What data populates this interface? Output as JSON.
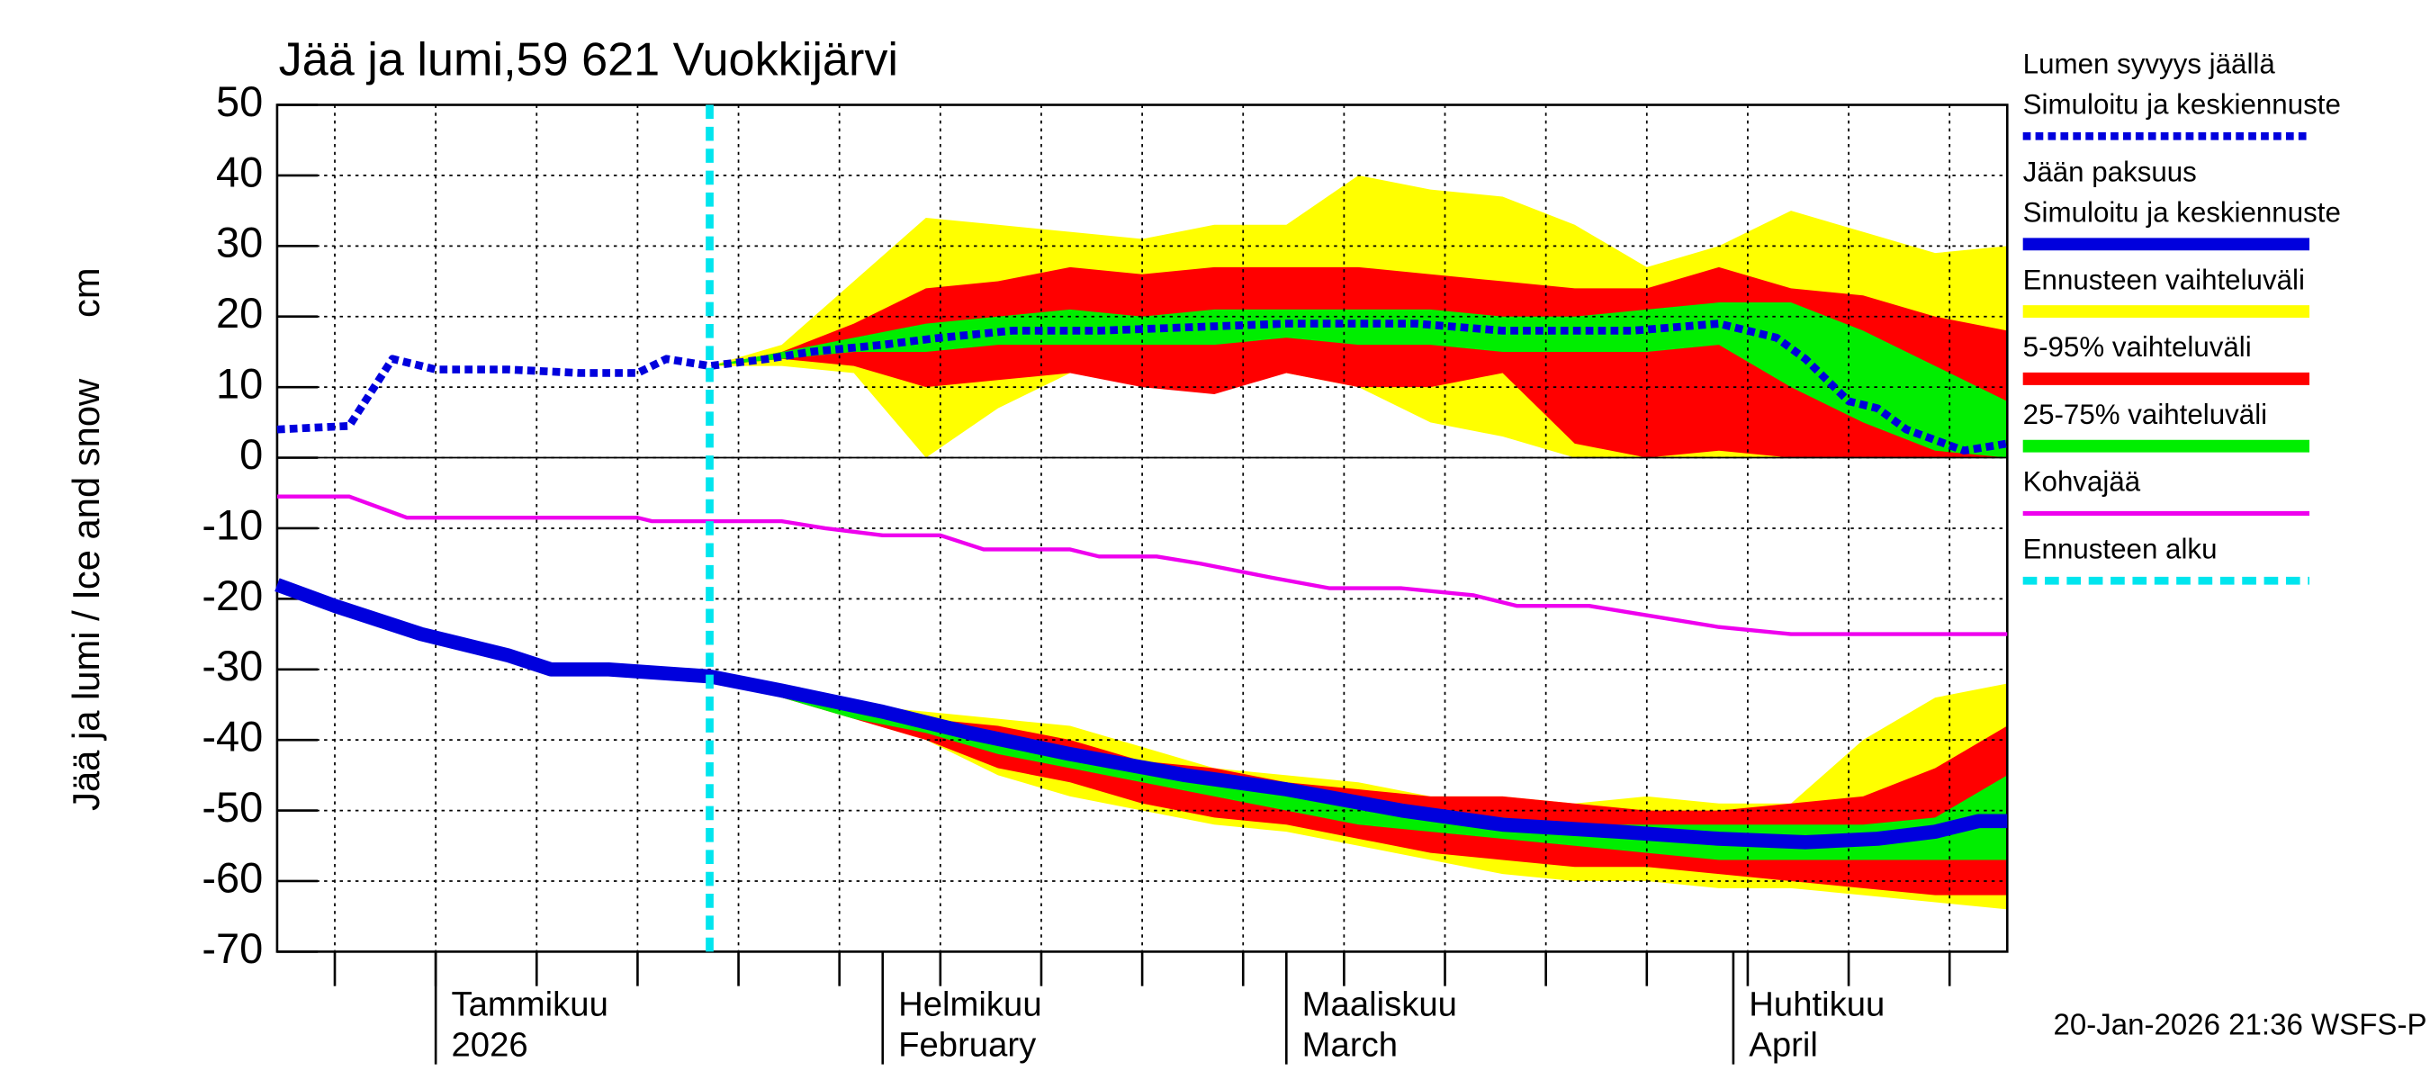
{
  "chart_data": {
    "type": "line",
    "title": "Jää ja lumi,59 621 Vuokkijärvi",
    "ylabel": "Jää ja lumi / Ice and snow",
    "yunit": "cm",
    "footer": "20-Jan-2026 21:36 WSFS-P",
    "ylim": [
      -70,
      50
    ],
    "yticks": [
      -70,
      -60,
      -50,
      -40,
      -30,
      -20,
      -10,
      0,
      10,
      20,
      30,
      40,
      50
    ],
    "xlim": [
      -11,
      109
    ],
    "xticks": [
      {
        "value": 0,
        "label": "Tammikuu",
        "sublabel": "2026"
      },
      {
        "value": 31,
        "label": "Helmikuu",
        "sublabel": "February"
      },
      {
        "value": 59,
        "label": "Maaliskuu",
        "sublabel": "March"
      },
      {
        "value": 90,
        "label": "Huhtikuu",
        "sublabel": "April"
      }
    ],
    "xgrid": [
      -7,
      0,
      7,
      14,
      21,
      28,
      35,
      42,
      49,
      56,
      63,
      70,
      77,
      84,
      91,
      98,
      105
    ],
    "grid": true,
    "band_x": [
      19,
      24,
      29,
      34,
      39,
      44,
      49,
      54,
      59,
      64,
      69,
      74,
      79,
      84,
      89,
      94,
      99,
      104,
      109
    ],
    "bands": [
      {
        "name": "Ennusteen vaihteluväli",
        "color": "#ffff00",
        "snow_upper": [
          13,
          16,
          25,
          34,
          33,
          32,
          31,
          33,
          33,
          40,
          38,
          37,
          33,
          27,
          30,
          35,
          32,
          29,
          30
        ],
        "snow_lower": [
          13,
          13,
          12,
          0,
          7,
          12,
          12,
          10,
          12,
          10,
          5,
          3,
          0,
          0,
          0,
          0,
          0,
          0,
          0
        ],
        "ice_upper": [
          -31,
          -33,
          -35,
          -36,
          -37,
          -38,
          -41,
          -44,
          -45,
          -46,
          -48,
          -48,
          -49,
          -48,
          -49,
          -49,
          -40,
          -34,
          -32
        ],
        "ice_lower": [
          -31,
          -34,
          -37,
          -40,
          -45,
          -48,
          -50,
          -52,
          -53,
          -55,
          -57,
          -59,
          -60,
          -60,
          -61,
          -61,
          -62,
          -63,
          -64
        ]
      },
      {
        "name": "5-95% vaihteluväli",
        "color": "#ff0000",
        "snow_upper": [
          13,
          15,
          19,
          24,
          25,
          27,
          26,
          27,
          27,
          27,
          26,
          25,
          24,
          24,
          27,
          24,
          23,
          20,
          18
        ],
        "snow_lower": [
          13,
          14,
          13,
          10,
          11,
          12,
          10,
          9,
          12,
          10,
          10,
          12,
          2,
          0,
          1,
          0,
          0,
          0,
          0
        ],
        "ice_upper": [
          -31,
          -33,
          -35,
          -37,
          -38,
          -40,
          -43,
          -44,
          -46,
          -47,
          -48,
          -48,
          -49,
          -50,
          -50,
          -49,
          -48,
          -44,
          -38
        ],
        "ice_lower": [
          -31,
          -34,
          -37,
          -40,
          -44,
          -46,
          -49,
          -51,
          -52,
          -54,
          -56,
          -57,
          -58,
          -58,
          -59,
          -60,
          -61,
          -62,
          -62
        ]
      },
      {
        "name": "25-75% vaihteluväli",
        "color": "#00ee00",
        "snow_upper": [
          13,
          15,
          17,
          19,
          20,
          21,
          20,
          21,
          21,
          21,
          21,
          20,
          20,
          21,
          22,
          22,
          18,
          13,
          8
        ],
        "snow_lower": [
          13,
          14,
          15,
          15,
          16,
          16,
          16,
          16,
          17,
          16,
          16,
          15,
          15,
          15,
          16,
          10,
          5,
          1,
          0
        ],
        "ice_upper": [
          -31,
          -33,
          -36,
          -38,
          -40,
          -42,
          -44,
          -46,
          -47,
          -49,
          -50,
          -51,
          -52,
          -52,
          -52,
          -52,
          -52,
          -51,
          -45
        ],
        "ice_lower": [
          -31,
          -34,
          -37,
          -39,
          -42,
          -44,
          -46,
          -48,
          -50,
          -52,
          -53,
          -54,
          -55,
          -56,
          -57,
          -57,
          -57,
          -57,
          -57
        ]
      }
    ],
    "series": [
      {
        "name": "Lumen syvyys jäällä",
        "subname": "Simuloitu ja keskiennuste",
        "color": "#0000dd",
        "dash": true,
        "x": [
          -11,
          -6,
          -3,
          0,
          5,
          10,
          14,
          16,
          19,
          23,
          26,
          31,
          35,
          40,
          46,
          59,
          68,
          74,
          83,
          89,
          93,
          95,
          98,
          100,
          102,
          106,
          109
        ],
        "values": [
          4,
          4.5,
          14,
          12.5,
          12.5,
          12,
          12,
          14,
          13,
          14,
          15,
          16,
          17,
          18,
          18,
          19,
          19,
          18,
          18,
          19,
          17,
          14,
          8,
          7,
          4,
          1,
          2
        ]
      },
      {
        "name": "Jään paksuus",
        "subname": "Simuloitu ja keskiennuste",
        "color": "#0000dd",
        "dash": false,
        "x": [
          -11,
          -7,
          -1,
          5,
          8,
          12,
          19,
          24,
          31,
          37,
          44,
          52,
          59,
          67,
          74,
          82,
          89,
          95,
          100,
          104,
          107,
          109
        ],
        "values": [
          -18,
          -21,
          -25,
          -28,
          -30,
          -30,
          -31,
          -33,
          -36,
          -39,
          -42,
          -45,
          -47,
          -50,
          -52,
          -53,
          -54,
          -54.5,
          -54,
          -53,
          -51.5,
          -51.5
        ]
      },
      {
        "name": "Kohvajää",
        "color": "#ee00ee",
        "dash": false,
        "x": [
          -11,
          -6,
          -2,
          14,
          15,
          24,
          27,
          31,
          35,
          38,
          44,
          46,
          50,
          53,
          58,
          62,
          67,
          72,
          75,
          80,
          83,
          89,
          94,
          109
        ],
        "values": [
          -5.5,
          -5.5,
          -8.5,
          -8.5,
          -9,
          -9,
          -10,
          -11,
          -11,
          -13,
          -13,
          -14,
          -14,
          -15,
          -17,
          -18.5,
          -18.5,
          -19.5,
          -21,
          -21,
          -22,
          -24,
          -25,
          -25
        ]
      }
    ],
    "forecast_start": {
      "name": "Ennusteen alku",
      "x": 19,
      "color": "#00e5ee"
    }
  }
}
